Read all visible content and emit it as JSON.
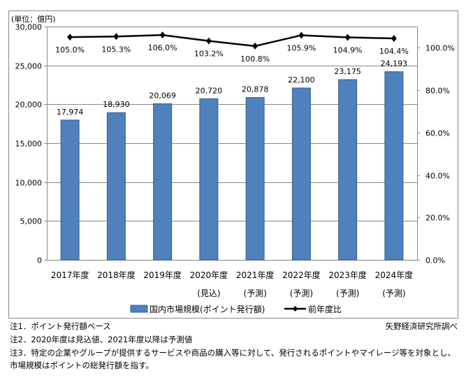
{
  "chart_data": {
    "type": "bar",
    "unit_label": "(単位：億円)",
    "categories": [
      "2017年度",
      "2018年度",
      "2019年度",
      "2020年度",
      "2021年度",
      "2022年度",
      "2023年度",
      "2024年度"
    ],
    "category_sublabels": [
      "",
      "",
      "",
      "(見込)",
      "(予測)",
      "(予測)",
      "(予測)",
      "(予測)"
    ],
    "series": [
      {
        "name": "国内市場規模(ポイント発行額)",
        "type": "bar",
        "axis": "left",
        "color": "#4f81bd",
        "values": [
          17974,
          18930,
          20069,
          20720,
          20878,
          22100,
          23175,
          24193
        ],
        "labels": [
          "17,974",
          "18,930",
          "20,069",
          "20,720",
          "20,878",
          "22,100",
          "23,175",
          "24,193"
        ]
      },
      {
        "name": "前年度比",
        "type": "line",
        "axis": "right",
        "color": "#000000",
        "values": [
          105.0,
          105.3,
          106.0,
          103.2,
          100.8,
          105.9,
          104.9,
          104.4
        ],
        "labels": [
          "105.0%",
          "105.3%",
          "106.0%",
          "103.2%",
          "100.8%",
          "105.9%",
          "104.9%",
          "104.4%"
        ]
      }
    ],
    "left_axis": {
      "ylim": [
        0,
        30000
      ],
      "ticks": [
        0,
        5000,
        10000,
        15000,
        20000,
        25000,
        30000
      ],
      "tick_labels": [
        "0",
        "5,000",
        "10,000",
        "15,000",
        "20,000",
        "25,000",
        "30,000"
      ]
    },
    "right_axis": {
      "ylim": [
        0,
        110
      ],
      "ticks": [
        0,
        20,
        40,
        60,
        80,
        100
      ],
      "tick_labels": [
        "0.0%",
        "20.0%",
        "40.0%",
        "60.0%",
        "80.0%",
        "100.0%"
      ]
    },
    "legend_position": "bottom",
    "grid": true
  },
  "notes": [
    "注1．ポイント発行額ベース",
    "注2．2020年度は見込値、2021年度以降は予測値",
    "注3．特定の企業やグループが提供するサービスや商品の購入等に対して、発行されるポイントやマイレージ等を対象とし、",
    "市場規模はポイントの総発行額を指す。"
  ],
  "source": "矢野経済研究所調べ"
}
